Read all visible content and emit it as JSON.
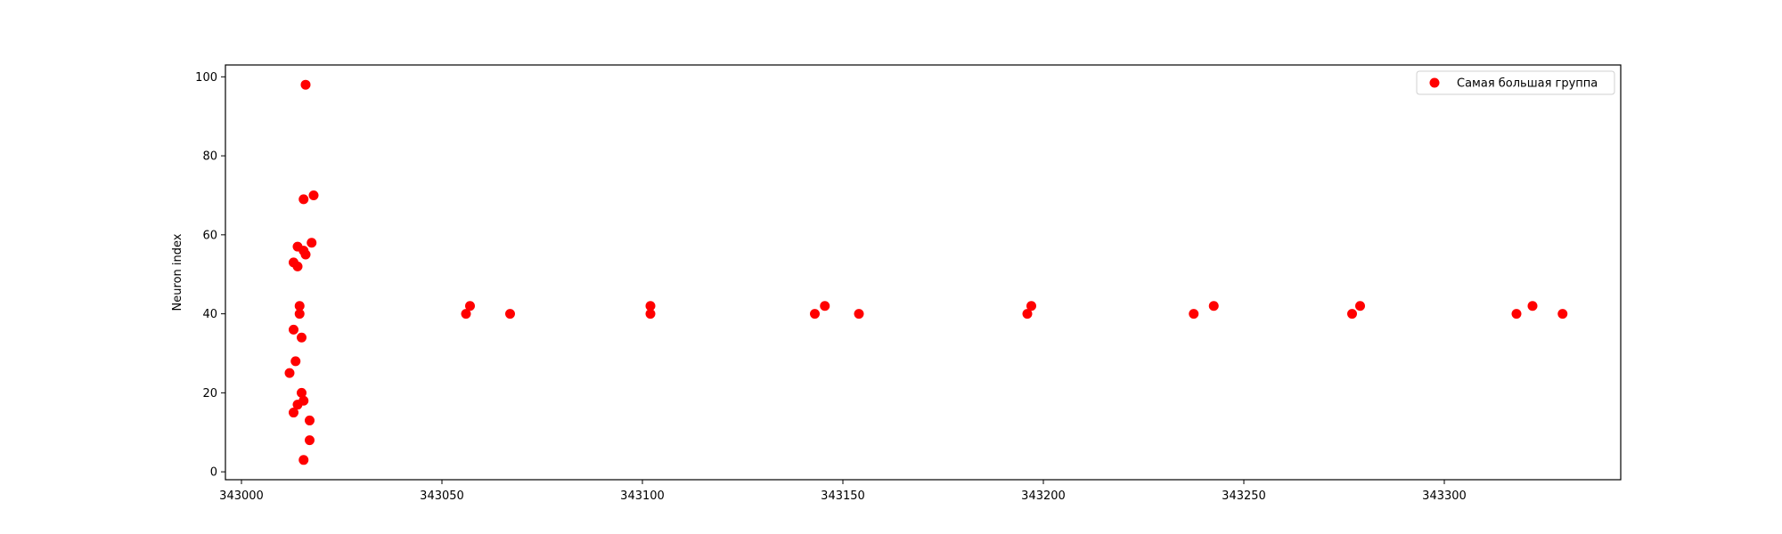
{
  "chart_data": {
    "type": "scatter",
    "title": "",
    "xlabel": "",
    "ylabel": "Neuron index",
    "xlim": [
      342996,
      343344
    ],
    "ylim": [
      -2,
      103
    ],
    "xticks": [
      343000,
      343050,
      343100,
      343150,
      343200,
      343250,
      343300
    ],
    "yticks": [
      0,
      20,
      40,
      60,
      80,
      100
    ],
    "grid": false,
    "legend_position": "top-right",
    "series": [
      {
        "name": "Самая большая группа",
        "color": "#ff0000",
        "points": [
          {
            "x": 343016,
            "y": 98
          },
          {
            "x": 343018,
            "y": 70
          },
          {
            "x": 343015.5,
            "y": 69
          },
          {
            "x": 343017.5,
            "y": 58
          },
          {
            "x": 343014,
            "y": 57
          },
          {
            "x": 343015.5,
            "y": 56
          },
          {
            "x": 343016,
            "y": 55
          },
          {
            "x": 343013,
            "y": 53
          },
          {
            "x": 343014,
            "y": 52
          },
          {
            "x": 343014.5,
            "y": 42
          },
          {
            "x": 343014.5,
            "y": 40
          },
          {
            "x": 343013,
            "y": 36
          },
          {
            "x": 343015,
            "y": 34
          },
          {
            "x": 343013.5,
            "y": 28
          },
          {
            "x": 343012,
            "y": 25
          },
          {
            "x": 343015,
            "y": 20
          },
          {
            "x": 343015.5,
            "y": 18
          },
          {
            "x": 343014,
            "y": 17
          },
          {
            "x": 343013,
            "y": 15
          },
          {
            "x": 343017,
            "y": 13
          },
          {
            "x": 343017,
            "y": 8
          },
          {
            "x": 343015.5,
            "y": 3
          },
          {
            "x": 343056,
            "y": 40
          },
          {
            "x": 343057,
            "y": 42
          },
          {
            "x": 343067,
            "y": 40
          },
          {
            "x": 343102,
            "y": 42
          },
          {
            "x": 343102,
            "y": 40
          },
          {
            "x": 343143,
            "y": 40
          },
          {
            "x": 343145.5,
            "y": 42
          },
          {
            "x": 343154,
            "y": 40
          },
          {
            "x": 343196,
            "y": 40
          },
          {
            "x": 343197,
            "y": 42
          },
          {
            "x": 343237.5,
            "y": 40
          },
          {
            "x": 343242.5,
            "y": 42
          },
          {
            "x": 343277,
            "y": 40
          },
          {
            "x": 343279,
            "y": 42
          },
          {
            "x": 343318,
            "y": 40
          },
          {
            "x": 343322,
            "y": 42
          },
          {
            "x": 343329.5,
            "y": 40
          }
        ]
      }
    ]
  }
}
